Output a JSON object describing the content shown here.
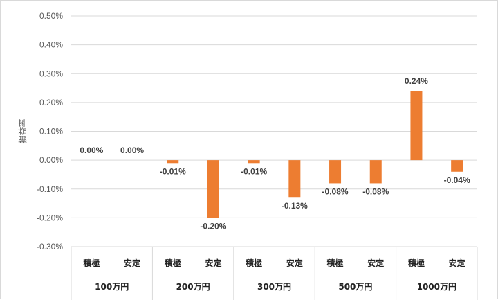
{
  "chart_data": {
    "type": "bar",
    "ylabel": "損益率",
    "ylim": [
      -0.3,
      0.5
    ],
    "ytick_step": 0.1,
    "ytick_labels": [
      "0.50%",
      "0.40%",
      "0.30%",
      "0.20%",
      "0.10%",
      "0.00%",
      "-0.10%",
      "-0.20%",
      "-0.30%"
    ],
    "grid": true,
    "bar_color": "#ED7D31",
    "groups": [
      {
        "label": "100万円",
        "categories": [
          "積極",
          "安定"
        ],
        "values": [
          0.0,
          0.0
        ],
        "labels": [
          "0.00%",
          "0.00%"
        ]
      },
      {
        "label": "200万円",
        "categories": [
          "積極",
          "安定"
        ],
        "values": [
          -0.01,
          -0.2
        ],
        "labels": [
          "-0.01%",
          "-0.20%"
        ]
      },
      {
        "label": "300万円",
        "categories": [
          "積極",
          "安定"
        ],
        "values": [
          -0.01,
          -0.13
        ],
        "labels": [
          "-0.01%",
          "-0.13%"
        ]
      },
      {
        "label": "500万円",
        "categories": [
          "積極",
          "安定"
        ],
        "values": [
          -0.08,
          -0.08
        ],
        "labels": [
          "-0.08%",
          "-0.08%"
        ]
      },
      {
        "label": "1000万円",
        "categories": [
          "積極",
          "安定"
        ],
        "values": [
          0.24,
          -0.04
        ],
        "labels": [
          "0.24%",
          "-0.04%"
        ]
      }
    ]
  }
}
